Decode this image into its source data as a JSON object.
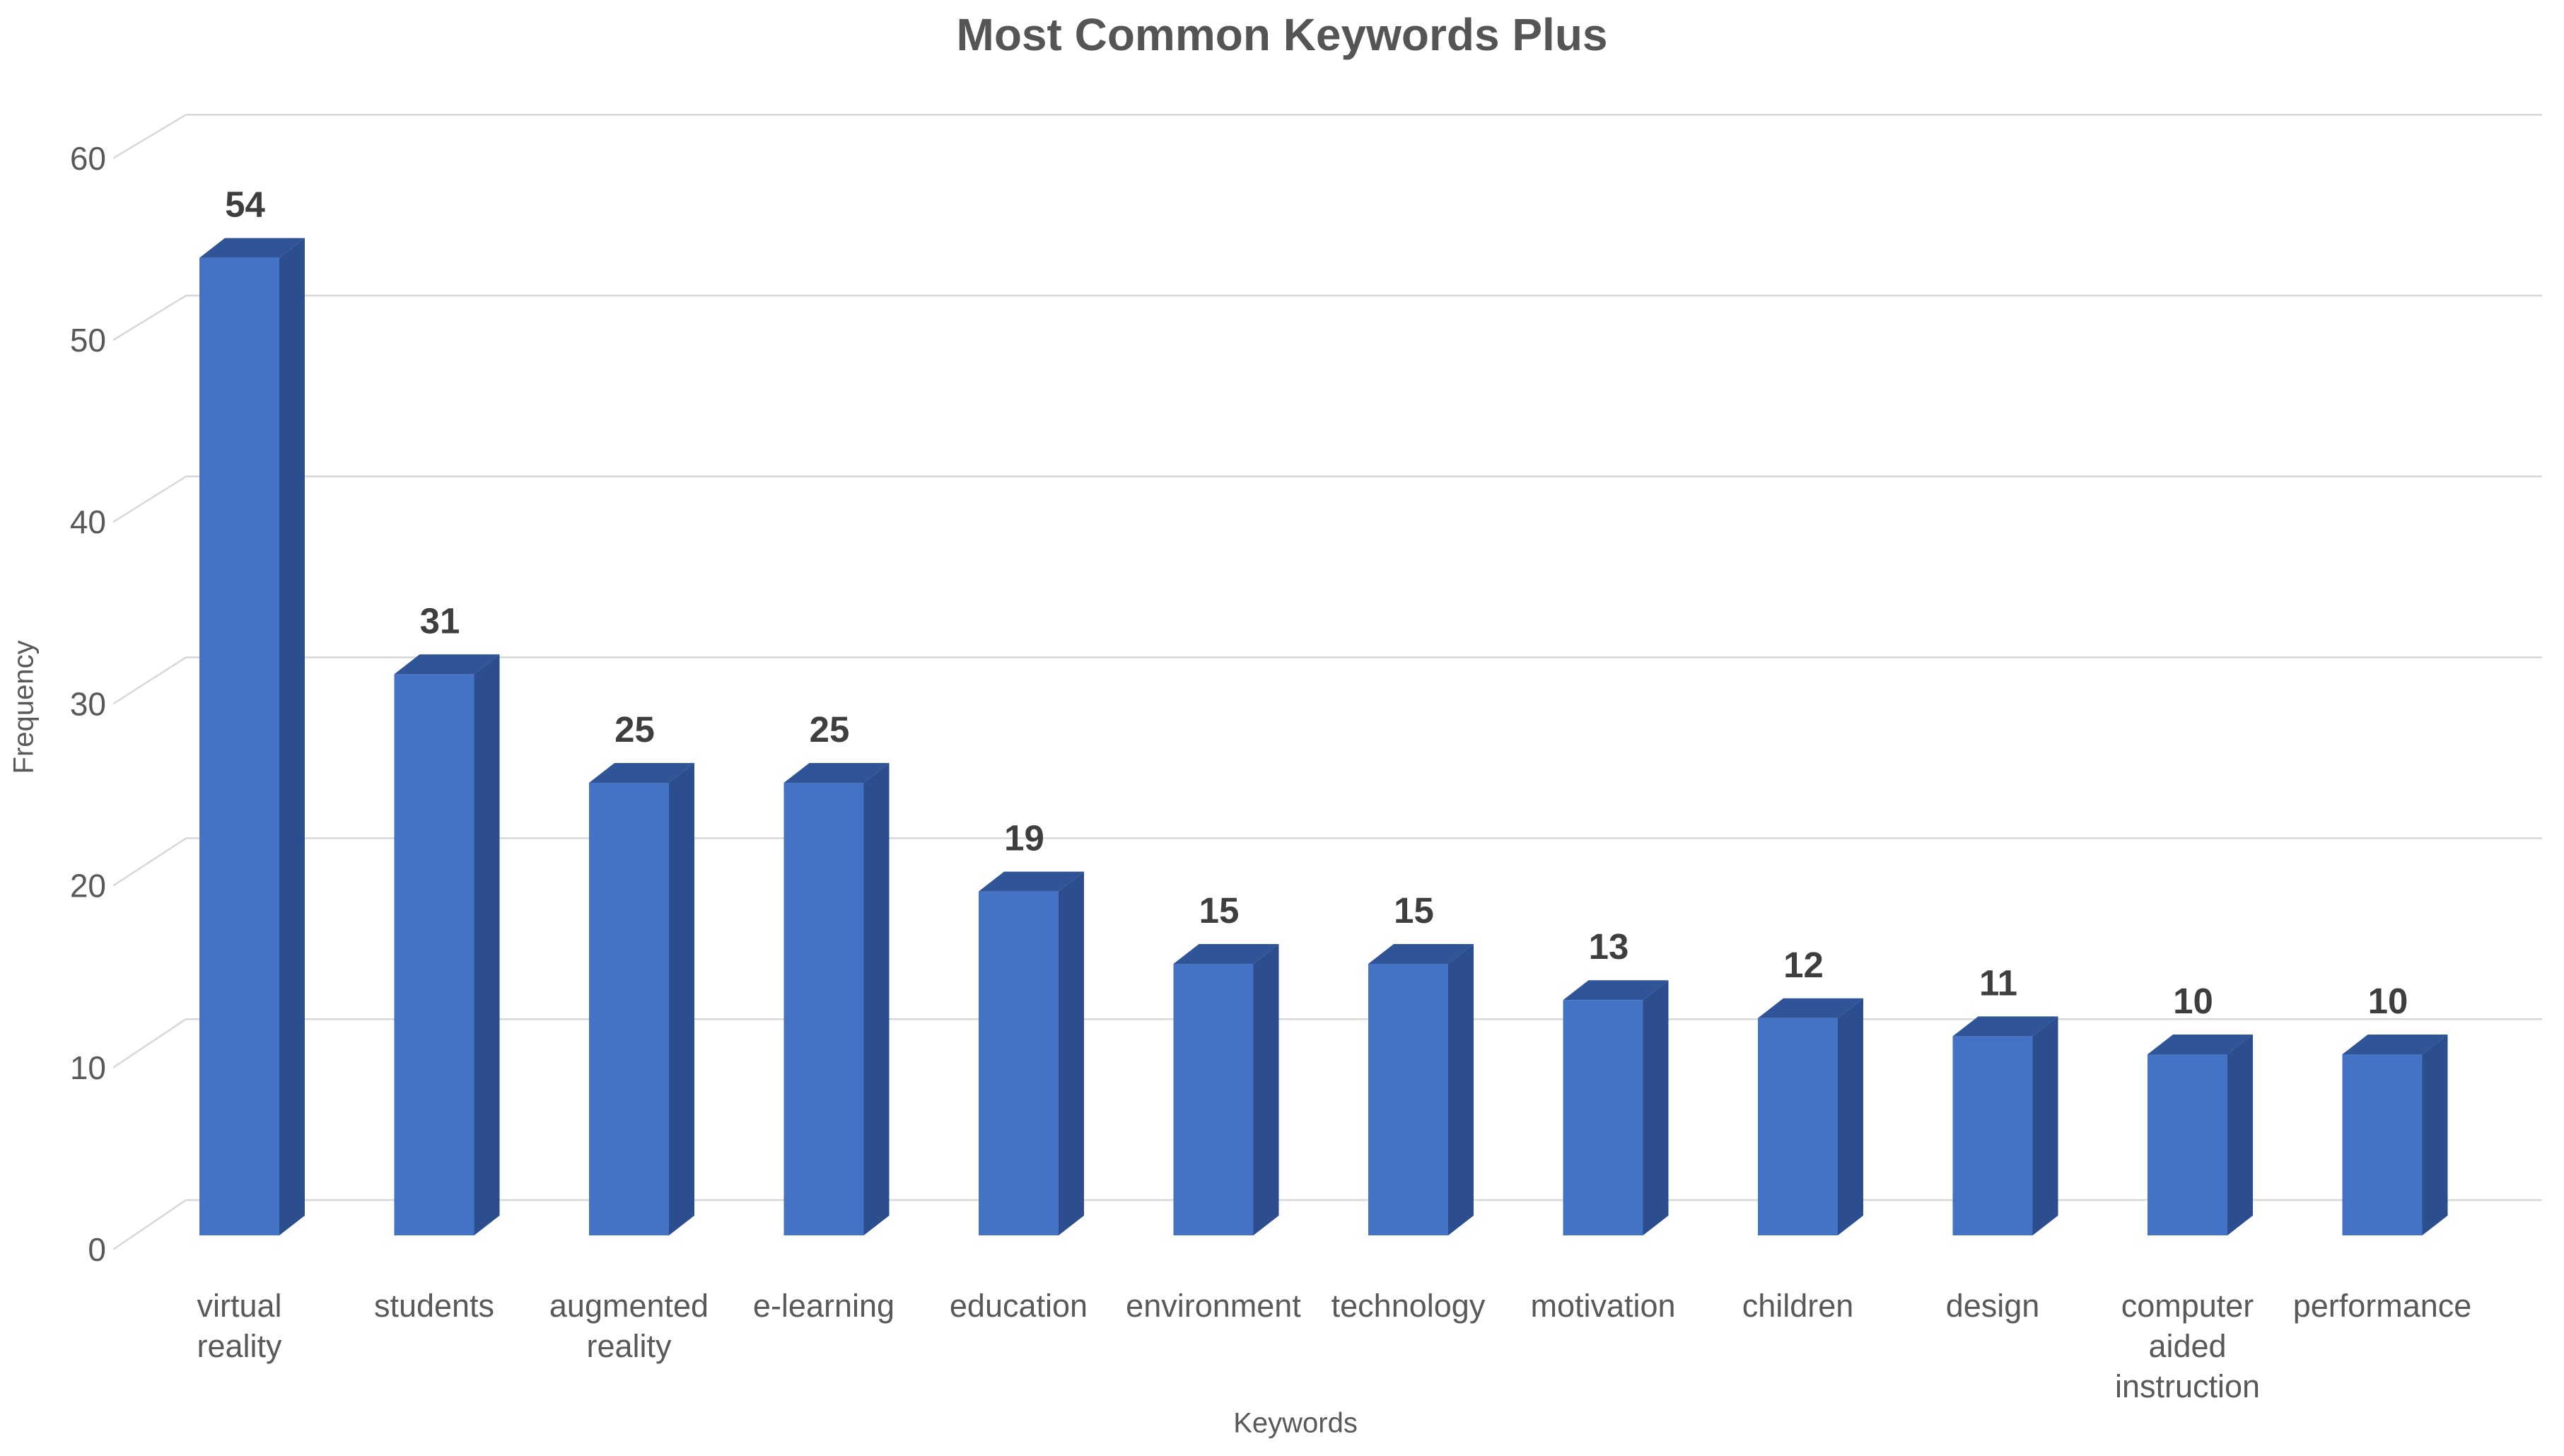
{
  "chart_data": {
    "type": "bar",
    "style": "3d-column",
    "title": "Most Common Keywords Plus",
    "xlabel": "Keywords",
    "ylabel": "Frequency",
    "categories": [
      "virtual reality",
      "students",
      "augmented reality",
      "e-learning",
      "education",
      "environment",
      "technology",
      "motivation",
      "children",
      "design",
      "computer aided instruction",
      "performance"
    ],
    "values": [
      54,
      31,
      25,
      25,
      19,
      15,
      15,
      13,
      12,
      11,
      10,
      10
    ],
    "ylim": [
      0,
      60
    ],
    "tick_step": 10,
    "grid": true,
    "legend_position": "none",
    "background": "#FFFFFF",
    "colors": {
      "bar_front": "#4472C4",
      "bar_top": "#305498",
      "bar_side": "#2C4D8E",
      "gridline": "#D8D8D8",
      "axis_text": "#595959",
      "value_label": "#3E3E3E",
      "title_text": "#555555"
    }
  }
}
